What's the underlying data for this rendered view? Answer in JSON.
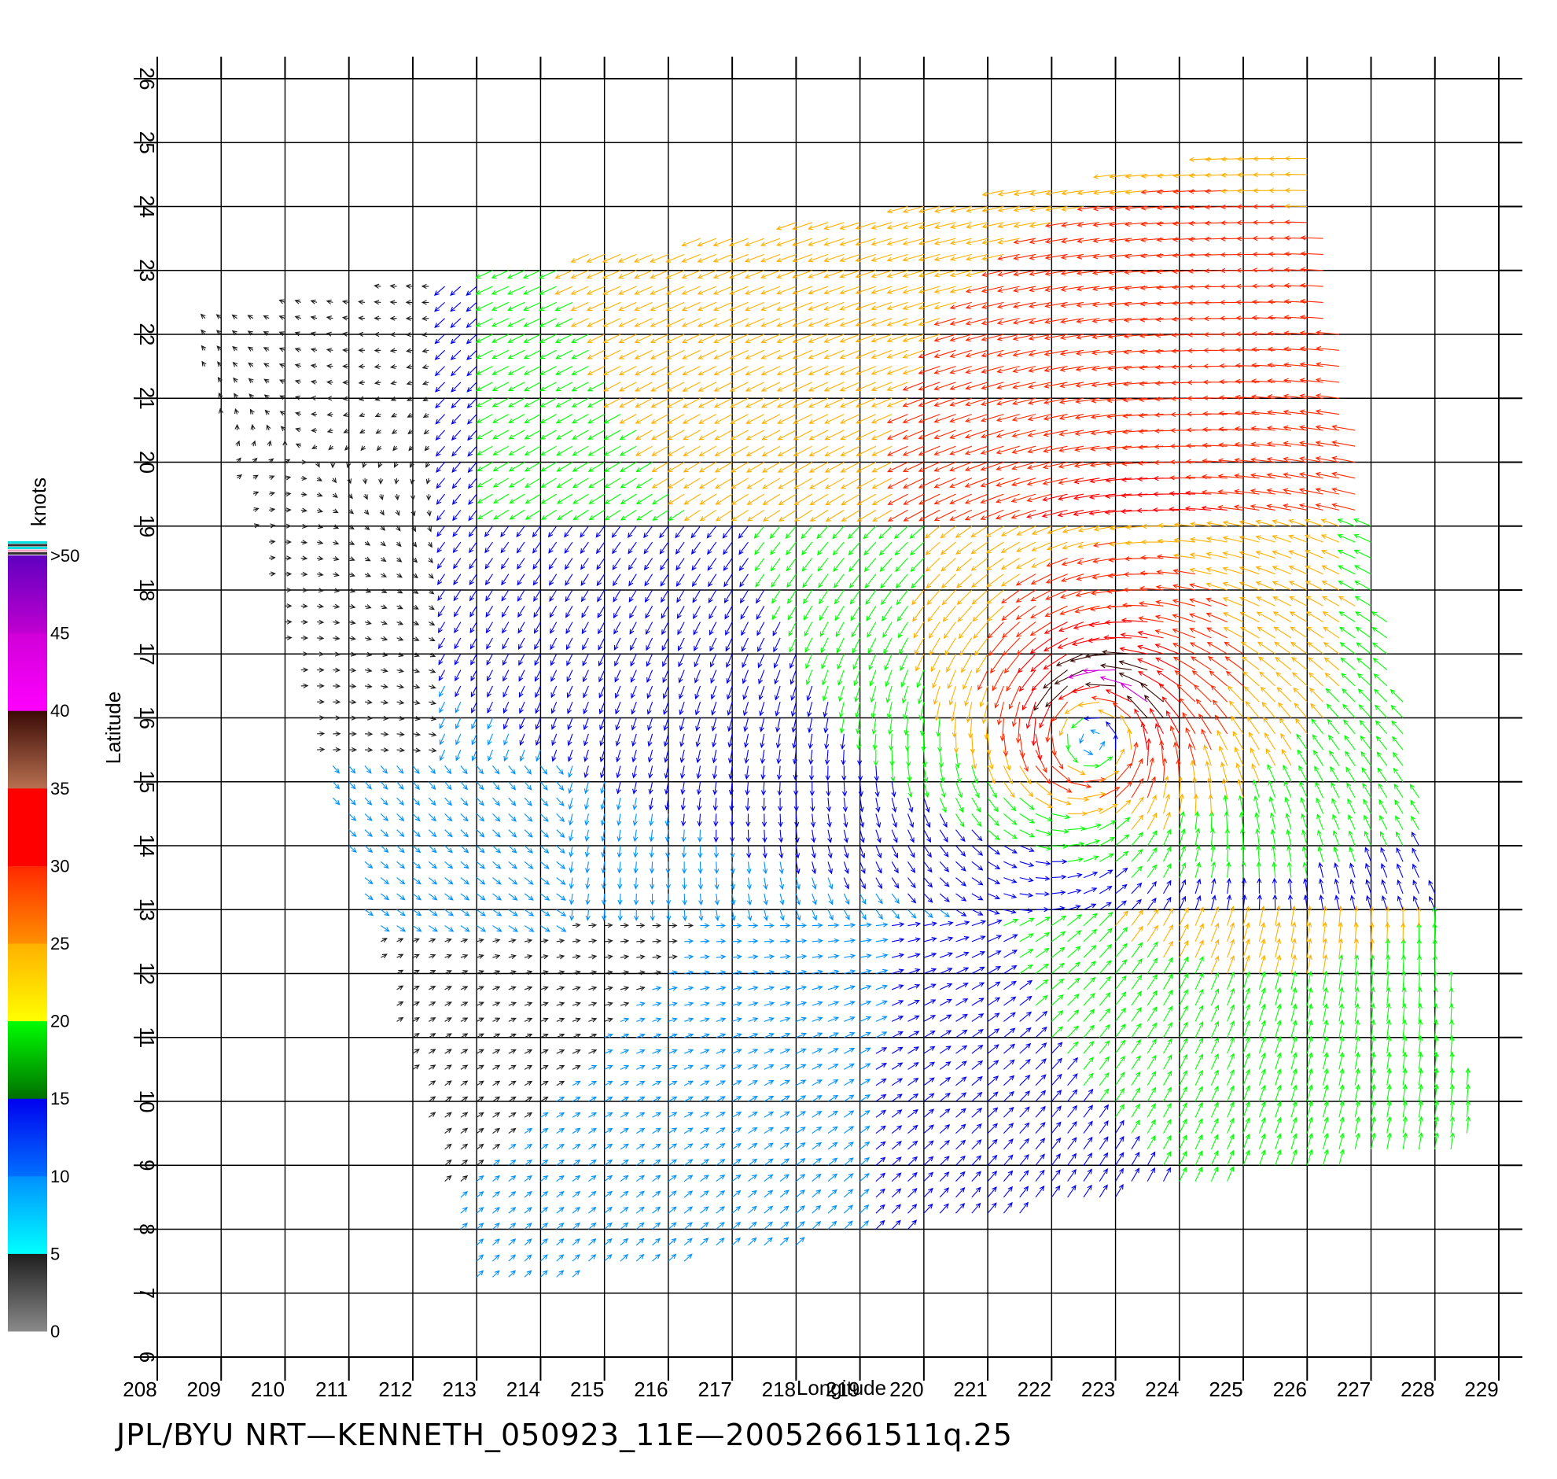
{
  "chart_data": {
    "type": "vector-field",
    "xlabel": "Longitude",
    "ylabel": "Latitude",
    "xlim": [
      208,
      229
    ],
    "ylim": [
      6,
      26
    ],
    "x_ticks": [
      "208",
      "209",
      "210",
      "211",
      "212",
      "213",
      "214",
      "215",
      "216",
      "217",
      "218",
      "219",
      "220",
      "221",
      "222",
      "223",
      "224",
      "225",
      "226",
      "227",
      "228",
      "229"
    ],
    "y_ticks": [
      "6",
      "7",
      "8",
      "9",
      "10",
      "11",
      "12",
      "13",
      "14",
      "15",
      "16",
      "17",
      "18",
      "19",
      "20",
      "21",
      "22",
      "23",
      "24",
      "25",
      "26"
    ],
    "grid": true,
    "vector_spacing_deg": 0.25,
    "storm_center": {
      "lon": 222.7,
      "lat": 15.8
    },
    "swath": {
      "corners": [
        [
          208.5,
          22.3
        ],
        [
          226.0,
          25.0
        ],
        [
          228.7,
          9.3
        ],
        [
          213.0,
          7.0
        ]
      ]
    },
    "colorbar": {
      "title": "knots",
      "labels": [
        ">50",
        "45",
        "40",
        "35",
        "30",
        "25",
        "20",
        "15",
        "10",
        "5",
        "0"
      ],
      "bins": [
        {
          "min": 0,
          "max": 5,
          "colors": [
            "#8a8a8a",
            "#1e1e1e"
          ]
        },
        {
          "min": 5,
          "max": 10,
          "colors": [
            "#00ffff",
            "#0090ff"
          ]
        },
        {
          "min": 10,
          "max": 15,
          "colors": [
            "#0070ff",
            "#0000ee"
          ]
        },
        {
          "min": 15,
          "max": 20,
          "colors": [
            "#007000",
            "#00ff00"
          ]
        },
        {
          "min": 20,
          "max": 25,
          "colors": [
            "#ffff00",
            "#ffb000"
          ]
        },
        {
          "min": 25,
          "max": 30,
          "colors": [
            "#ff9000",
            "#ff2800"
          ]
        },
        {
          "min": 30,
          "max": 35,
          "colors": [
            "#ff0000",
            "#ff0000"
          ]
        },
        {
          "min": 35,
          "max": 40,
          "colors": [
            "#b87050",
            "#3a0a05"
          ]
        },
        {
          "min": 40,
          "max": 45,
          "colors": [
            "#ff00ff",
            "#d000d8"
          ]
        },
        {
          "min": 45,
          "max": 50,
          "colors": [
            "#c000d0",
            "#6000c0"
          ]
        }
      ]
    }
  },
  "caption": "JPL/BYU  NRT—KENNETH_050923_11E—20052661511q.25"
}
